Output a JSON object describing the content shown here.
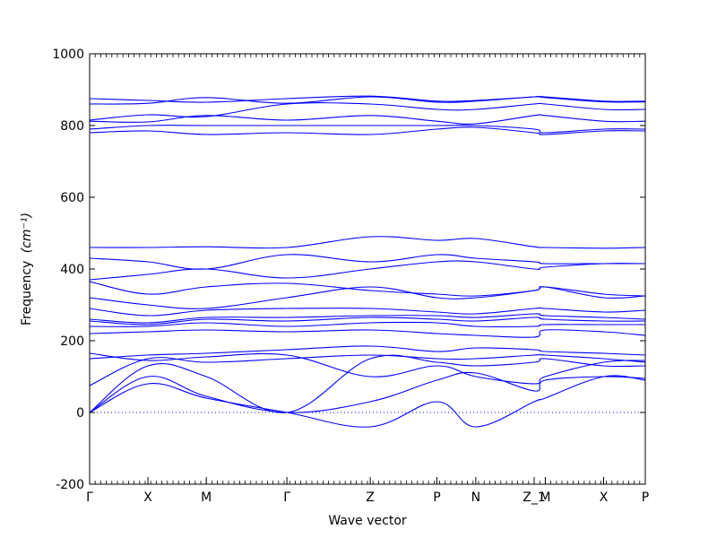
{
  "chart_data": {
    "type": "line",
    "title": "",
    "xlabel": "Wave vector",
    "ylabel": "Frequency",
    "ylabel_unit_tex": "(cm⁻¹)",
    "ylim": [
      -200,
      1000
    ],
    "yticks": [
      -200,
      0,
      200,
      400,
      600,
      800,
      1000
    ],
    "grid": false,
    "line_color": "#0000ff",
    "zero_line": {
      "y": 0,
      "style": "dotted",
      "color": "#0000ff"
    },
    "x_range": [
      0,
      10
    ],
    "high_symmetry_points": [
      {
        "label": "Γ",
        "x": 0.0
      },
      {
        "label": "X",
        "x": 1.05
      },
      {
        "label": "M",
        "x": 2.1
      },
      {
        "label": "Γ",
        "x": 3.55
      },
      {
        "label": "Z",
        "x": 5.05
      },
      {
        "label": "P",
        "x": 6.25
      },
      {
        "label": "N",
        "x": 6.95
      },
      {
        "label": "Z_1",
        "x": 8.0
      },
      {
        "label": "M",
        "x": 8.2
      },
      {
        "label": "X",
        "x": 9.25
      },
      {
        "label": "P",
        "x": 10.0
      }
    ],
    "bands": [
      {
        "name": "",
        "x": [
          0,
          1.05,
          2.1,
          3.55,
          5.05,
          6.25,
          6.95,
          8.0,
          8.2,
          9.25,
          10.0
        ],
        "y": [
          0,
          80,
          40,
          0,
          -40,
          30,
          -40,
          30,
          40,
          100,
          90
        ]
      },
      {
        "name": "",
        "x": [
          0,
          1.05,
          2.1,
          3.55,
          5.05,
          6.25,
          6.95,
          8.0,
          8.2,
          9.25,
          10.0
        ],
        "y": [
          0,
          100,
          45,
          0,
          30,
          90,
          110,
          60,
          90,
          100,
          95
        ]
      },
      {
        "name": "",
        "x": [
          0,
          1.05,
          2.1,
          3.55,
          5.05,
          6.25,
          6.95,
          8.0,
          8.2,
          9.25,
          10.0
        ],
        "y": [
          0,
          130,
          100,
          0,
          150,
          140,
          130,
          140,
          150,
          130,
          130
        ]
      },
      {
        "name": "",
        "x": [
          0,
          1.05,
          2.1,
          3.55,
          5.05,
          6.25,
          6.95,
          8.0,
          8.2,
          9.25,
          10.0
        ],
        "y": [
          75,
          150,
          140,
          150,
          160,
          150,
          150,
          160,
          160,
          150,
          140
        ]
      },
      {
        "name": "",
        "x": [
          0,
          1.05,
          2.1,
          3.55,
          5.05,
          6.25,
          6.95,
          8.0,
          8.2,
          9.25,
          10.0
        ],
        "y": [
          150,
          160,
          165,
          175,
          185,
          170,
          180,
          175,
          170,
          165,
          160
        ]
      },
      {
        "name": "",
        "x": [
          0,
          1.05,
          2.1,
          3.55,
          5.05,
          6.25,
          6.95,
          8.0,
          8.2,
          9.25,
          10.0
        ],
        "y": [
          165,
          145,
          155,
          160,
          100,
          130,
          100,
          80,
          100,
          140,
          145
        ]
      },
      {
        "name": "",
        "x": [
          0,
          1.05,
          2.1,
          3.55,
          5.05,
          6.25,
          6.95,
          8.0,
          8.2,
          9.25,
          10.0
        ],
        "y": [
          220,
          225,
          230,
          225,
          230,
          220,
          215,
          210,
          230,
          225,
          215
        ]
      },
      {
        "name": "",
        "x": [
          0,
          1.05,
          2.1,
          3.55,
          5.05,
          6.25,
          6.95,
          8.0,
          8.2,
          9.25,
          10.0
        ],
        "y": [
          240,
          240,
          250,
          240,
          250,
          250,
          240,
          240,
          245,
          245,
          245
        ]
      },
      {
        "name": "",
        "x": [
          0,
          1.05,
          2.1,
          3.55,
          5.05,
          6.25,
          6.95,
          8.0,
          8.2,
          9.25,
          10.0
        ],
        "y": [
          255,
          245,
          260,
          255,
          265,
          260,
          255,
          265,
          260,
          255,
          255
        ]
      },
      {
        "name": "",
        "x": [
          0,
          1.05,
          2.1,
          3.55,
          5.05,
          6.25,
          6.95,
          8.0,
          8.2,
          9.25,
          10.0
        ],
        "y": [
          260,
          250,
          265,
          265,
          270,
          270,
          265,
          275,
          270,
          265,
          260
        ]
      },
      {
        "name": "",
        "x": [
          0,
          1.05,
          2.1,
          3.55,
          5.05,
          6.25,
          6.95,
          8.0,
          8.2,
          9.25,
          10.0
        ],
        "y": [
          290,
          270,
          285,
          290,
          290,
          280,
          275,
          290,
          290,
          280,
          285
        ]
      },
      {
        "name": "",
        "x": [
          0,
          1.05,
          2.1,
          3.55,
          5.05,
          6.25,
          6.95,
          8.0,
          8.2,
          9.25,
          10.0
        ],
        "y": [
          320,
          300,
          290,
          320,
          350,
          320,
          320,
          340,
          350,
          320,
          325
        ]
      },
      {
        "name": "",
        "x": [
          0,
          1.05,
          2.1,
          3.55,
          5.05,
          6.25,
          6.95,
          8.0,
          8.2,
          9.25,
          10.0
        ],
        "y": [
          365,
          330,
          350,
          360,
          340,
          330,
          325,
          340,
          350,
          330,
          325
        ]
      },
      {
        "name": "",
        "x": [
          0,
          1.05,
          2.1,
          3.55,
          5.05,
          6.25,
          6.95,
          8.0,
          8.2,
          9.25,
          10.0
        ],
        "y": [
          370,
          385,
          400,
          375,
          400,
          420,
          420,
          400,
          405,
          415,
          415
        ]
      },
      {
        "name": "",
        "x": [
          0,
          1.05,
          2.1,
          3.55,
          5.05,
          6.25,
          6.95,
          8.0,
          8.2,
          9.25,
          10.0
        ],
        "y": [
          430,
          420,
          400,
          440,
          420,
          440,
          430,
          420,
          415,
          415,
          415
        ]
      },
      {
        "name": "",
        "x": [
          0,
          1.05,
          2.1,
          3.55,
          5.05,
          6.25,
          6.95,
          8.0,
          8.2,
          9.25,
          10.0
        ],
        "y": [
          460,
          460,
          462,
          460,
          490,
          480,
          485,
          462,
          460,
          458,
          460
        ]
      },
      {
        "name": "",
        "x": [
          0,
          1.05,
          2.1,
          3.55,
          5.05,
          6.25,
          6.95,
          8.0,
          8.2,
          9.25,
          10.0
        ],
        "y": [
          780,
          785,
          775,
          780,
          775,
          790,
          795,
          780,
          775,
          785,
          785
        ]
      },
      {
        "name": "",
        "x": [
          0,
          1.05,
          2.1,
          3.55,
          5.05,
          6.25,
          6.95,
          8.0,
          8.2,
          9.25,
          10.0
        ],
        "y": [
          790,
          800,
          800,
          800,
          800,
          800,
          800,
          790,
          780,
          790,
          790
        ]
      },
      {
        "name": "",
        "x": [
          0,
          1.05,
          2.1,
          3.55,
          5.05,
          6.25,
          6.95,
          8.0,
          8.2,
          9.25,
          10.0
        ],
        "y": [
          812,
          810,
          828,
          815,
          828,
          812,
          805,
          828,
          828,
          812,
          812
        ]
      },
      {
        "name": "",
        "x": [
          0,
          1.05,
          2.1,
          3.55,
          5.05,
          6.25,
          6.95,
          8.0,
          8.2,
          9.25,
          10.0
        ],
        "y": [
          815,
          830,
          825,
          860,
          860,
          845,
          845,
          860,
          860,
          845,
          845
        ]
      },
      {
        "name": "",
        "x": [
          0,
          1.05,
          2.1,
          3.55,
          5.05,
          6.25,
          6.95,
          8.0,
          8.2,
          9.25,
          10.0
        ],
        "y": [
          860,
          862,
          878,
          862,
          880,
          865,
          868,
          880,
          878,
          866,
          866
        ]
      },
      {
        "name": "",
        "x": [
          0,
          1.05,
          2.1,
          3.55,
          5.05,
          6.25,
          6.95,
          8.0,
          8.2,
          9.25,
          10.0
        ],
        "y": [
          875,
          870,
          865,
          875,
          882,
          868,
          870,
          880,
          880,
          868,
          868
        ]
      }
    ]
  }
}
